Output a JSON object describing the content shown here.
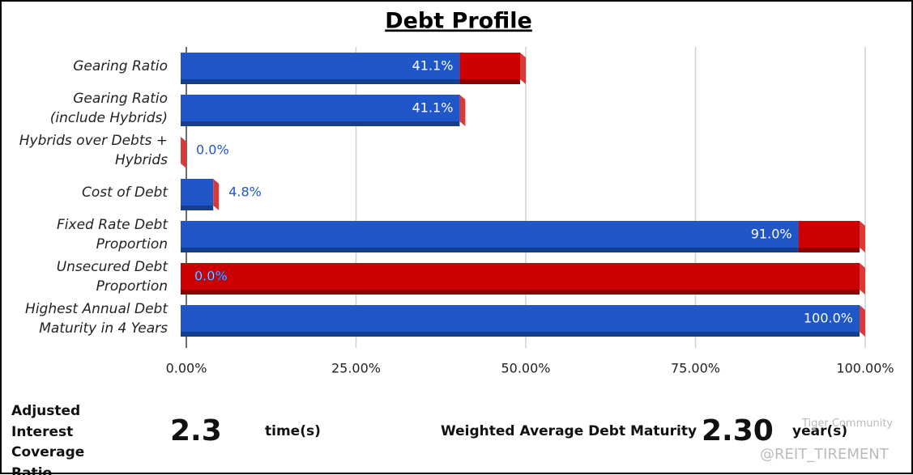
{
  "chart_data": {
    "type": "bar3d-horizontal-stacked",
    "title": "Debt Profile",
    "categories": [
      "Gearing Ratio",
      "Gearing Ratio (include Hybrids)",
      "Hybrids over Debts + Hybrids",
      "Cost of Debt",
      "Fixed Rate Debt Proportion",
      "Unsecured Debt Proportion",
      "Highest Annual Debt Maturity in 4 Years"
    ],
    "series": [
      {
        "color": "#1f56c8",
        "values": [
          41.1,
          41.1,
          0.0,
          4.8,
          91.0,
          0.0,
          100.0
        ],
        "value_labels": [
          "41.1%",
          "41.1%",
          "0.0%",
          "4.8%",
          "91.0%",
          "0.0%",
          "100.0%"
        ]
      },
      {
        "color": "#cc0000",
        "values": [
          8.9,
          0,
          0,
          0,
          9.0,
          100,
          0
        ]
      }
    ],
    "xlim": [
      0,
      100
    ],
    "xticks": [
      {
        "value": 0,
        "label": "0.00%"
      },
      {
        "value": 25,
        "label": "25.00%"
      },
      {
        "value": 50,
        "label": "50.00%"
      },
      {
        "value": 75,
        "label": "75.00%"
      },
      {
        "value": 100,
        "label": "100.00%"
      }
    ],
    "grid": true
  },
  "footer": {
    "coverage_label": "Adjusted Interest Coverage Ratio",
    "coverage_value": "2.3",
    "coverage_unit": "time(s)",
    "maturity_label": "Weighted Average Debt Maturity",
    "maturity_value": "2.30",
    "maturity_unit": "year(s)",
    "watermark": "Tiger Community",
    "handle": "@REIT_TIREMENT"
  }
}
